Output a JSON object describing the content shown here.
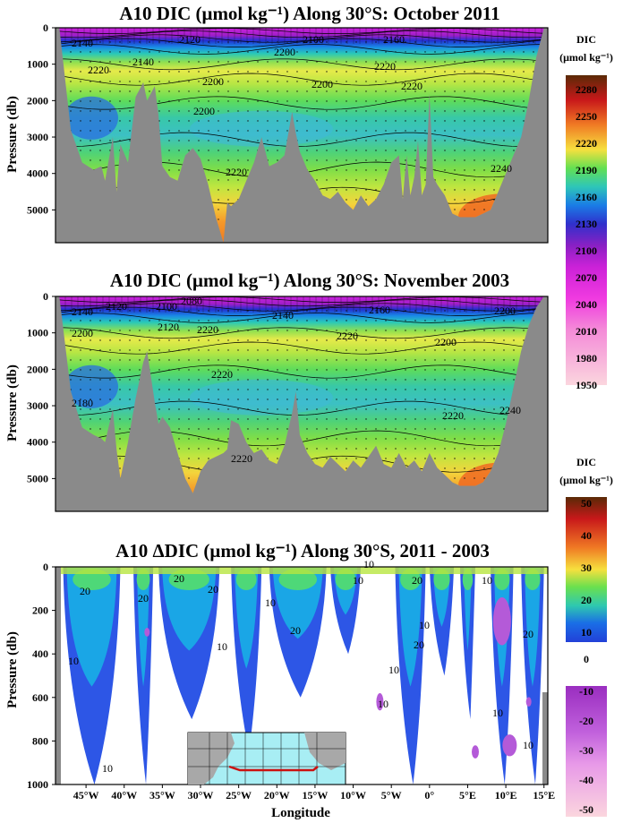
{
  "chart_data": [
    {
      "type": "heatmap",
      "title": "A10 DIC (μmol kg⁻¹) Along 30°S: October 2011",
      "ylabel": "Pressure (db)",
      "xlim": [
        -49,
        15.5
      ],
      "ylim": [
        5900,
        0
      ],
      "y_ticks": [
        0,
        1000,
        2000,
        3000,
        4000,
        5000
      ],
      "contour_labels": [
        2140,
        2120,
        2140,
        2100,
        2160,
        2200,
        2220,
        2200,
        2220,
        2200,
        2220,
        2200,
        2220,
        2240
      ],
      "bottom_depth": {
        "lon": [
          -48.5,
          -47,
          -45.5,
          -44,
          -43,
          -42.5,
          -41.5,
          -41,
          -40.5,
          -39.5,
          -38.5,
          -37.5,
          -37,
          -36,
          -35.5,
          -35,
          -34,
          -33,
          -32,
          -31,
          -30,
          -29,
          -28,
          -27,
          -26.5,
          -26,
          -25,
          -24,
          -23,
          -22,
          -21,
          -20,
          -19,
          -18,
          -17.5,
          -17,
          -16,
          -15,
          -14,
          -13,
          -12,
          -11,
          -10,
          -9,
          -8,
          -7,
          -6,
          -5,
          -4,
          -3.5,
          -3,
          -2.5,
          -2,
          -1.5,
          -1,
          -0.5,
          0,
          0.5,
          1,
          2,
          3,
          4,
          5,
          6,
          7,
          8,
          9,
          10,
          11,
          12,
          13,
          14,
          15
        ],
        "depth": [
          0,
          2800,
          3700,
          3900,
          3800,
          4200,
          3000,
          4500,
          3200,
          3700,
          1900,
          1500,
          2000,
          1600,
          2400,
          3800,
          4100,
          4200,
          3500,
          3300,
          3600,
          4300,
          5200,
          5900,
          4800,
          4900,
          4700,
          4200,
          3700,
          3000,
          3800,
          3700,
          3500,
          2300,
          2900,
          3400,
          3900,
          4200,
          4600,
          4700,
          4500,
          4800,
          5000,
          4600,
          4900,
          4700,
          4300,
          3700,
          3500,
          4700,
          3500,
          4600,
          4100,
          3100,
          4600,
          4300,
          1800,
          4100,
          4300,
          4600,
          5100,
          5200,
          5200,
          5200,
          5100,
          5000,
          4500,
          4000,
          3500,
          3000,
          2000,
          800,
          0
        ]
      }
    },
    {
      "type": "heatmap",
      "title": "A10 DIC (μmol kg⁻¹) Along 30°S: November 2003",
      "ylabel": "Pressure (db)",
      "xlim": [
        -49,
        15.5
      ],
      "ylim": [
        5900,
        0
      ],
      "y_ticks": [
        0,
        1000,
        2000,
        3000,
        4000,
        5000
      ],
      "contour_labels": [
        2140,
        2120,
        2100,
        2080,
        2120,
        2140,
        2160,
        2200,
        2200,
        2220,
        2220,
        2200,
        2180,
        2220,
        2240,
        2220,
        2220
      ],
      "bottom_depth": {
        "lon": [
          -48.5,
          -47,
          -45.5,
          -44,
          -43,
          -42.5,
          -41.5,
          -41,
          -40.5,
          -39.5,
          -38.5,
          -37.5,
          -37,
          -36,
          -35.5,
          -35,
          -34,
          -33,
          -32,
          -31,
          -30,
          -29,
          -28,
          -27,
          -26.5,
          -26,
          -25,
          -24,
          -23,
          -22,
          -21,
          -20,
          -19,
          -18,
          -17.5,
          -17,
          -16,
          -15,
          -14,
          -13,
          -12,
          -11,
          -10,
          -9,
          -8,
          -7,
          -6,
          -5,
          -4,
          -3,
          -2,
          -1,
          0,
          1,
          2,
          3,
          4,
          5,
          6,
          7,
          8,
          9,
          10,
          11,
          12,
          13,
          14,
          15
        ],
        "depth": [
          0,
          2600,
          3600,
          3800,
          3900,
          4000,
          3100,
          4200,
          5000,
          4000,
          2800,
          1800,
          1500,
          2900,
          3500,
          3300,
          3600,
          4300,
          5000,
          5400,
          4800,
          4500,
          4400,
          4300,
          4200,
          3400,
          3500,
          4000,
          4300,
          4200,
          4500,
          4600,
          4100,
          3200,
          2600,
          3800,
          4300,
          4600,
          4700,
          4400,
          4600,
          4800,
          4500,
          4700,
          4400,
          4100,
          4600,
          4700,
          4300,
          4700,
          4500,
          4800,
          4300,
          4700,
          4900,
          5100,
          5200,
          5200,
          5200,
          5100,
          4800,
          4300,
          3500,
          2500,
          1500,
          800,
          300,
          0
        ]
      }
    },
    {
      "type": "heatmap",
      "title": "A10 ΔDIC (μmol kg⁻¹) Along 30°S, 2011 - 2003",
      "xlabel": "Longitude",
      "ylabel": "Pressure (db)",
      "xlim": [
        -49,
        15.5
      ],
      "ylim": [
        1000,
        0
      ],
      "x_ticks": [
        "45°W",
        "40°W",
        "35°W",
        "30°W",
        "25°W",
        "20°W",
        "15°W",
        "10°W",
        "5°W",
        "0°",
        "5°E",
        "10°E",
        "15°E"
      ],
      "x_tick_values": [
        -45,
        -40,
        -35,
        -30,
        -25,
        -20,
        -15,
        -10,
        -5,
        0,
        5,
        10,
        15
      ],
      "y_ticks": [
        0,
        200,
        400,
        600,
        800,
        1000
      ],
      "contour_labels": [
        20,
        20,
        20,
        10,
        10,
        20,
        10,
        20,
        10,
        10,
        20,
        10,
        10,
        10,
        20,
        10,
        20,
        10,
        10,
        10
      ]
    }
  ],
  "colorbar_top": {
    "label_line1": "DIC",
    "label_line2": "(μmol kg⁻¹)",
    "ticks": [
      2280,
      2250,
      2220,
      2190,
      2160,
      2130,
      2100,
      2070,
      2040,
      2010,
      1980,
      1950
    ]
  },
  "colorbar_bottom": {
    "label_line1": "DIC",
    "label_line2": "(μmol kg⁻¹)",
    "positive_ticks": [
      50,
      40,
      30,
      20,
      10
    ],
    "zero_tick": "0",
    "negative_ticks": [
      -10,
      -20,
      -30,
      -40,
      -50
    ]
  },
  "colors": {
    "topography": "#8a8a8a",
    "missing": "#ffffff",
    "track": "#cc1111",
    "inset_sea": "#a8eef4",
    "inset_land": "#a8a8a8"
  }
}
